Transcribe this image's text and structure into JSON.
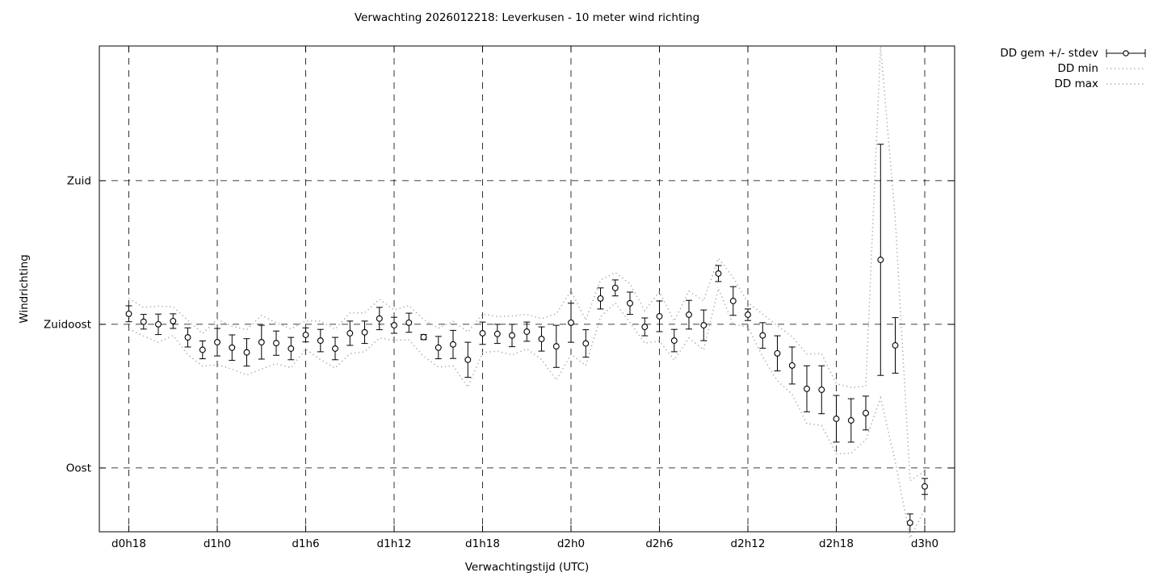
{
  "chart": {
    "title": "Verwachting 2026012218: Leverkusen - 10 meter wind richting",
    "xlabel": "Verwachtingstijd (UTC)",
    "ylabel": "Windrichting",
    "legend": [
      {
        "label": "DD gem +/- stdev",
        "sample": "errorbar"
      },
      {
        "label": "DD min",
        "sample": "dotted-line"
      },
      {
        "label": "DD max",
        "sample": "dotted-line"
      }
    ]
  },
  "chart_data": {
    "type": "line",
    "subtype": "errorbars-with-minmax-envelope",
    "title": "Verwachting 2026012218: Leverkusen - 10 meter wind richting",
    "xlabel": "Verwachtingstijd (UTC)",
    "ylabel": "Windrichting",
    "x_unit": "hours from d0h18, hourly points",
    "y_unit": "wind direction degrees (Oost=90, Zuidoost=135, Zuid=180)",
    "grid": true,
    "legend_position": "outside-top-right",
    "x_ticks": [
      {
        "h": 0,
        "label": "d0h18"
      },
      {
        "h": 6,
        "label": "d1h0"
      },
      {
        "h": 12,
        "label": "d1h6"
      },
      {
        "h": 18,
        "label": "d1h12"
      },
      {
        "h": 24,
        "label": "d1h18"
      },
      {
        "h": 30,
        "label": "d2h0"
      },
      {
        "h": 36,
        "label": "d2h6"
      },
      {
        "h": 42,
        "label": "d2h12"
      },
      {
        "h": 48,
        "label": "d2h18"
      },
      {
        "h": 54,
        "label": "d3h0"
      }
    ],
    "y_ticks": [
      {
        "deg": 180,
        "label": "Zuid"
      },
      {
        "deg": 135,
        "label": "Zuidoost"
      },
      {
        "deg": 90,
        "label": "Oost"
      }
    ],
    "ylim": [
      70.0,
      222.2
    ],
    "xlim_hours": [
      -2.0,
      56.0
    ],
    "series": [
      {
        "name": "DD gem +/- stdev",
        "style": "points-with-error-bars",
        "color": "#000000"
      },
      {
        "name": "DD min",
        "style": "dotted",
        "color": "#a9a9a9"
      },
      {
        "name": "DD max",
        "style": "dotted",
        "color": "#a9a9a9"
      }
    ],
    "mean": [
      138.3,
      135.8,
      135.0,
      136.0,
      130.9,
      127.0,
      129.4,
      127.7,
      126.2,
      129.4,
      129.1,
      127.4,
      131.7,
      129.9,
      127.4,
      132.2,
      132.5,
      136.8,
      134.7,
      135.5,
      131.0,
      127.7,
      128.7,
      123.9,
      132.2,
      132.0,
      131.5,
      132.7,
      130.4,
      128.1,
      135.5,
      129.0,
      143.1,
      146.4,
      141.6,
      134.2,
      137.5,
      129.9,
      138.0,
      134.7,
      150.9,
      142.3,
      138.0,
      131.5,
      125.9,
      122.1,
      114.8,
      114.5,
      105.4,
      104.9,
      107.2,
      155.2,
      128.4,
      72.8,
      84.2
    ],
    "stdev": [
      2.5,
      2.3,
      3.2,
      2.3,
      3.0,
      2.8,
      4.3,
      4.0,
      4.3,
      5.3,
      3.8,
      3.5,
      2.2,
      3.5,
      3.5,
      3.8,
      3.5,
      3.5,
      2.5,
      3.0,
      0.8,
      3.5,
      4.4,
      5.5,
      3.5,
      3.0,
      3.5,
      3.0,
      3.8,
      6.6,
      6.1,
      4.3,
      3.3,
      2.5,
      3.5,
      2.8,
      4.8,
      3.5,
      4.5,
      4.8,
      2.5,
      4.5,
      1.8,
      4.0,
      5.5,
      5.8,
      7.2,
      7.5,
      7.3,
      6.8,
      5.3,
      36.2,
      8.7,
      2.8,
      2.5
    ],
    "min": [
      133.6,
      131.3,
      129.3,
      131.5,
      125.5,
      121.9,
      122.3,
      121.0,
      119.1,
      121.0,
      122.7,
      121.4,
      127.3,
      123.9,
      121.3,
      125.8,
      126.4,
      130.7,
      130.0,
      130.1,
      125.0,
      121.6,
      122.0,
      115.3,
      126.1,
      126.6,
      125.4,
      127.3,
      124.0,
      117.5,
      125.6,
      122.1,
      137.3,
      141.7,
      135.5,
      129.1,
      129.8,
      123.8,
      130.7,
      127.0,
      146.2,
      135.0,
      134.2,
      124.8,
      117.3,
      113.1,
      103.9,
      103.3,
      94.4,
      94.6,
      98.8,
      112.0,
      92.0,
      68.0,
      77.0
    ],
    "max": [
      143.1,
      140.3,
      140.7,
      140.5,
      136.3,
      132.1,
      136.5,
      134.4,
      133.3,
      137.8,
      135.5,
      133.5,
      136.1,
      136.0,
      133.5,
      138.6,
      138.6,
      142.9,
      139.5,
      140.9,
      136.5,
      133.8,
      135.9,
      132.6,
      138.3,
      137.4,
      137.6,
      138.1,
      136.8,
      138.3,
      145.5,
      136.3,
      148.9,
      151.2,
      147.7,
      139.3,
      145.2,
      136.0,
      145.4,
      142.4,
      155.7,
      149.7,
      141.8,
      138.2,
      134.6,
      131.1,
      125.7,
      125.8,
      116.4,
      115.2,
      115.6,
      222.0,
      168.0,
      86.0,
      89.0
    ]
  }
}
